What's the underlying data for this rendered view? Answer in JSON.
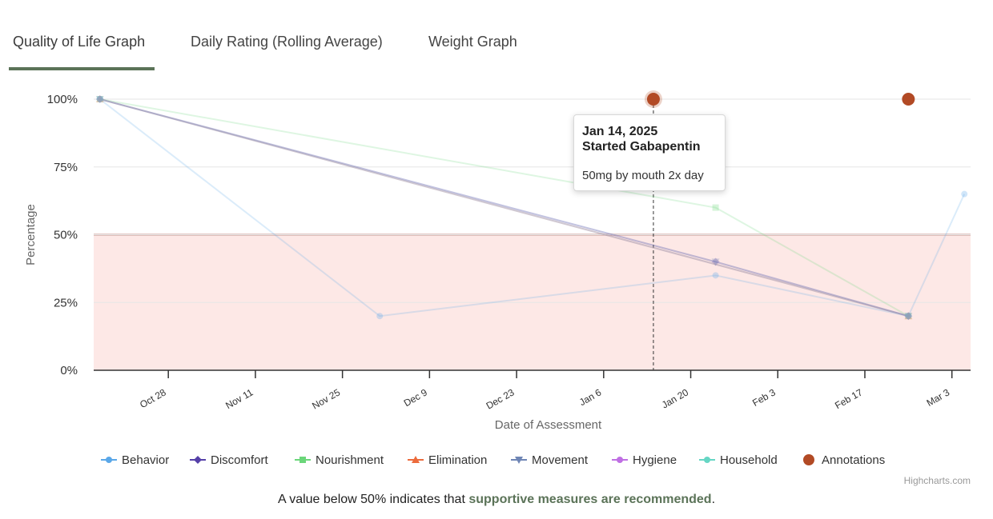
{
  "tabs": [
    {
      "label": "Quality of Life Graph",
      "active": true
    },
    {
      "label": "Daily Rating (Rolling Average)",
      "active": false
    },
    {
      "label": "Weight Graph",
      "active": false
    }
  ],
  "chart_data": {
    "type": "line",
    "ylabel": "Percentage",
    "xlabel": "Date of Assessment",
    "ylim": [
      0,
      100
    ],
    "y_ticks": [
      "0%",
      "25%",
      "50%",
      "75%",
      "100%"
    ],
    "x_ticks": [
      {
        "label": "Oct 28",
        "date": "2024-10-28"
      },
      {
        "label": "Nov 11",
        "date": "2024-11-11"
      },
      {
        "label": "Nov 25",
        "date": "2024-11-25"
      },
      {
        "label": "Dec 9",
        "date": "2024-12-09"
      },
      {
        "label": "Dec 23",
        "date": "2024-12-23"
      },
      {
        "label": "Jan 6",
        "date": "2025-01-06"
      },
      {
        "label": "Jan 20",
        "date": "2025-01-20"
      },
      {
        "label": "Feb 3",
        "date": "2025-02-03"
      },
      {
        "label": "Feb 17",
        "date": "2025-02-17"
      },
      {
        "label": "Mar 3",
        "date": "2025-03-03"
      }
    ],
    "xlim": [
      "2024-10-16",
      "2025-03-06"
    ],
    "threshold": {
      "value": 50,
      "color": "#c48f8a",
      "band_color": "#fde8e6"
    },
    "grid": true,
    "legend_position": "bottom",
    "series": [
      {
        "name": "Behavior",
        "color": "#5aa7e8",
        "marker": "circle",
        "points": [
          [
            "2024-10-17",
            100
          ],
          [
            "2024-12-01",
            20
          ],
          [
            "2025-01-24",
            35
          ],
          [
            "2025-02-24",
            20
          ],
          [
            "2025-03-05",
            65
          ]
        ]
      },
      {
        "name": "Discomfort",
        "color": "#5540a8",
        "marker": "diamond",
        "points": [
          [
            "2024-10-17",
            100
          ],
          [
            "2025-01-24",
            40
          ],
          [
            "2025-02-24",
            20
          ]
        ]
      },
      {
        "name": "Nourishment",
        "color": "#6bd67a",
        "marker": "square",
        "points": [
          [
            "2024-10-17",
            100
          ],
          [
            "2025-01-24",
            60
          ],
          [
            "2025-02-24",
            20
          ]
        ]
      },
      {
        "name": "Elimination",
        "color": "#ec6b3c",
        "marker": "triangle",
        "points": [
          [
            "2024-10-17",
            100
          ],
          [
            "2025-02-24",
            20
          ]
        ]
      },
      {
        "name": "Movement",
        "color": "#6f86b5",
        "marker": "triangle-down",
        "points": [
          [
            "2024-10-17",
            100
          ],
          [
            "2025-01-24",
            40
          ],
          [
            "2025-02-24",
            20
          ]
        ]
      },
      {
        "name": "Hygiene",
        "color": "#bf6fe3",
        "marker": "circle",
        "points": [
          [
            "2024-10-17",
            100
          ],
          [
            "2025-02-24",
            20
          ]
        ]
      },
      {
        "name": "Household",
        "color": "#66d6c4",
        "marker": "circle",
        "points": [
          [
            "2024-10-17",
            100
          ],
          [
            "2025-02-24",
            20
          ]
        ]
      },
      {
        "name": "Annotations",
        "color": "#b24a25",
        "marker": "circle",
        "points": [
          [
            "2025-01-14",
            100
          ],
          [
            "2025-02-24",
            100
          ]
        ]
      }
    ],
    "annotation_tooltip": {
      "date": "Jan 14, 2025",
      "title": "Started Gabapentin",
      "body": "50mg by mouth 2x day",
      "x": "2025-01-14"
    },
    "credits": "Highcharts.com"
  },
  "footer": {
    "prefix": "A value below 50% indicates that ",
    "emphasis": "supportive measures are recommended",
    "suffix": "."
  }
}
